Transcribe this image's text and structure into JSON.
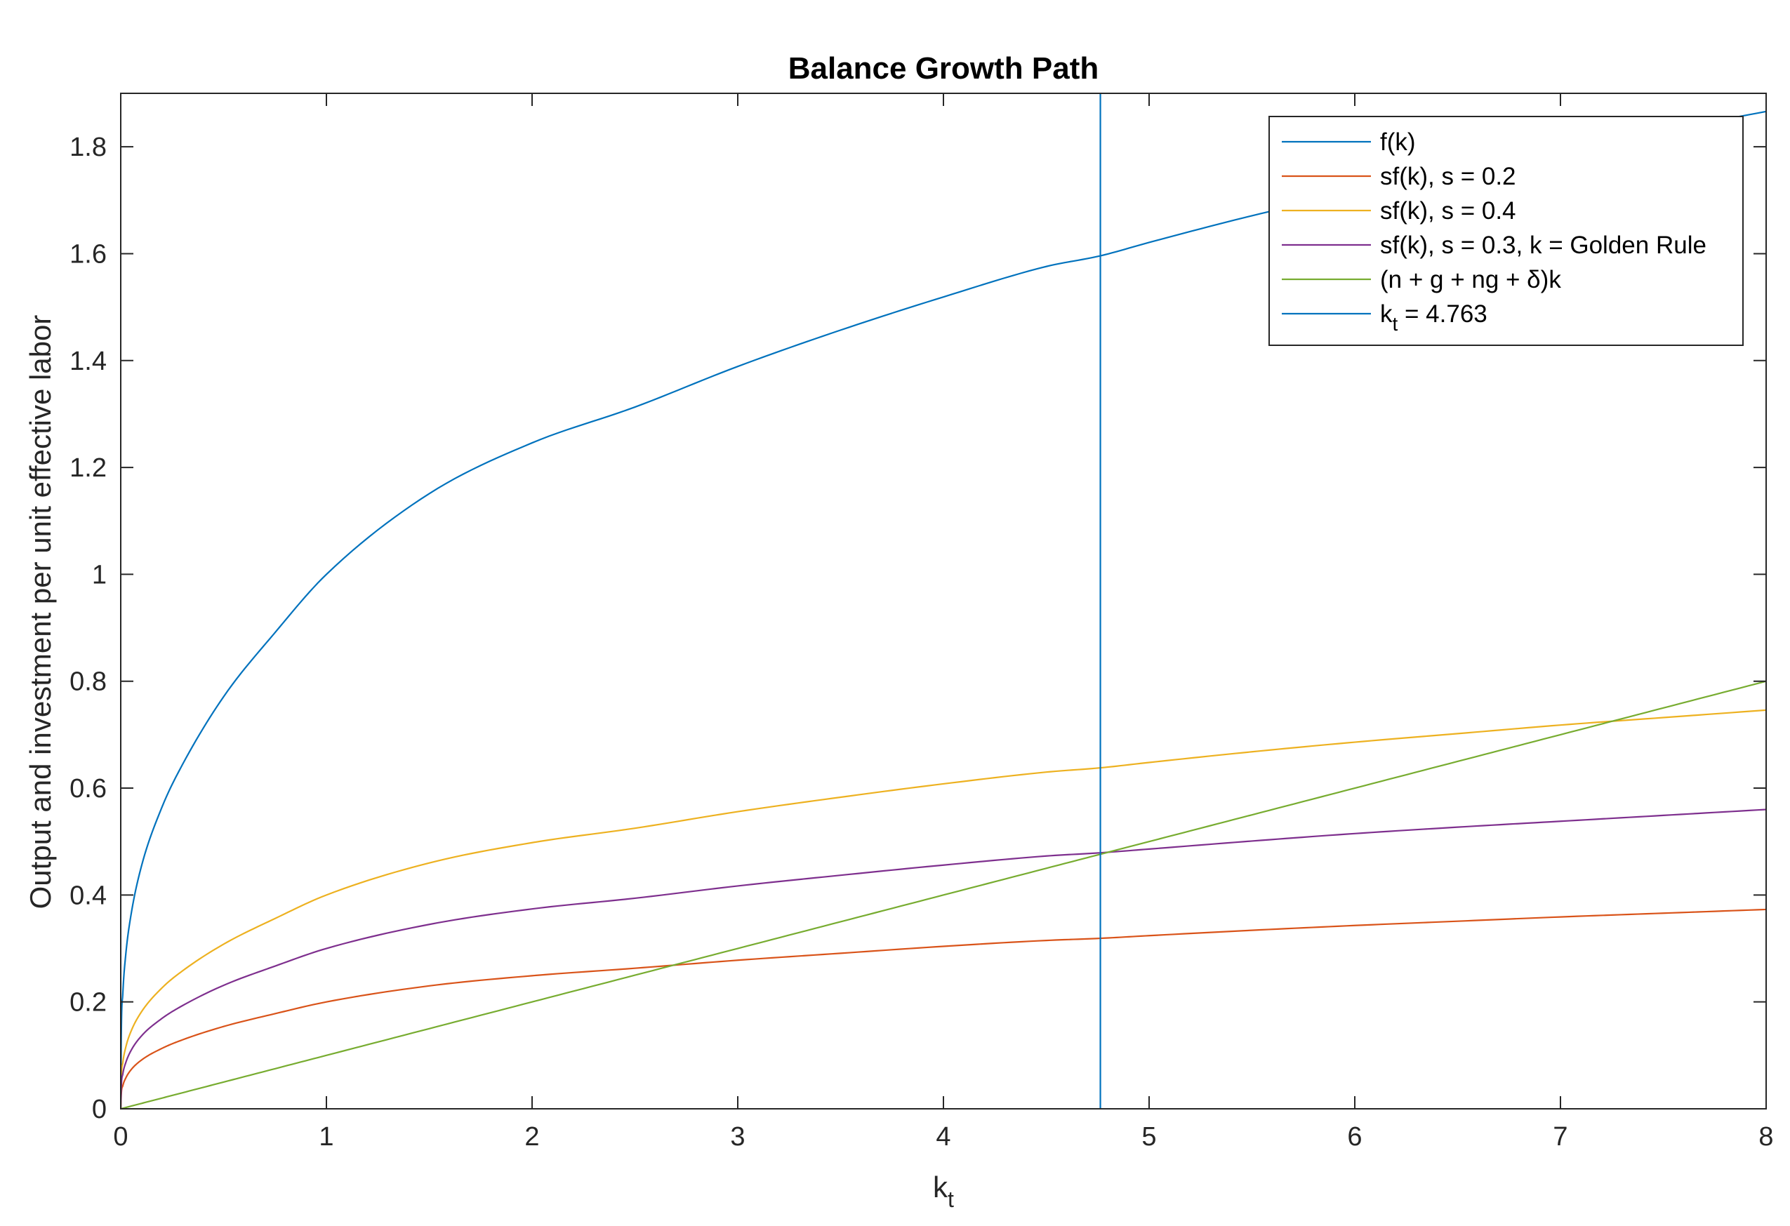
{
  "chart_data": {
    "type": "line",
    "title": "Balance Growth Path",
    "xlabel": "k",
    "xlabel_sub": "t",
    "ylabel": "Output and investment per unit effective labor",
    "xlim": [
      0,
      8
    ],
    "ylim": [
      0,
      1.9
    ],
    "x_ticks": [
      0,
      1,
      2,
      3,
      4,
      5,
      6,
      7,
      8
    ],
    "x_tick_labels": [
      "0",
      "1",
      "2",
      "3",
      "4",
      "5",
      "6",
      "7",
      "8"
    ],
    "y_ticks": [
      0,
      0.2,
      0.4,
      0.6,
      0.8,
      1.0,
      1.2,
      1.4,
      1.6,
      1.8
    ],
    "y_tick_labels": [
      "0",
      "0.2",
      "0.4",
      "0.6",
      "0.8",
      "1",
      "1.2",
      "1.4",
      "1.6",
      "1.8"
    ],
    "grid": false,
    "legend_position": "top-right",
    "x": [
      0,
      0.0025,
      0.01,
      0.025,
      0.05,
      0.1,
      0.2,
      0.3,
      0.5,
      0.75,
      1,
      1.5,
      2,
      2.5,
      3,
      3.5,
      4,
      4.5,
      4.763,
      5,
      5.5,
      6,
      6.5,
      7,
      7.5,
      8
    ],
    "series": [
      {
        "name": "f(k)",
        "color": "#0072BD",
        "values": [
          0,
          0.135,
          0.215,
          0.291,
          0.363,
          0.453,
          0.564,
          0.644,
          0.771,
          0.891,
          1.0,
          1.151,
          1.246,
          1.313,
          1.389,
          1.457,
          1.519,
          1.576,
          1.596,
          1.621,
          1.671,
          1.715,
          1.755,
          1.794,
          1.83,
          1.866
        ]
      },
      {
        "name": "sf(k), s = 0.2",
        "color": "#D95319",
        "values": [
          0,
          0.027,
          0.043,
          0.058,
          0.073,
          0.091,
          0.113,
          0.129,
          0.154,
          0.178,
          0.2,
          0.23,
          0.249,
          0.263,
          0.278,
          0.291,
          0.304,
          0.315,
          0.319,
          0.324,
          0.334,
          0.343,
          0.351,
          0.359,
          0.366,
          0.373
        ]
      },
      {
        "name": "sf(k), s = 0.4",
        "color": "#EDB120",
        "values": [
          0,
          0.054,
          0.086,
          0.116,
          0.145,
          0.181,
          0.226,
          0.258,
          0.308,
          0.356,
          0.4,
          0.46,
          0.498,
          0.525,
          0.556,
          0.583,
          0.608,
          0.63,
          0.638,
          0.648,
          0.668,
          0.686,
          0.702,
          0.718,
          0.732,
          0.746
        ]
      },
      {
        "name": "sf(k), s = 0.3, k = Golden Rule",
        "color": "#7E2F8E",
        "values": [
          0,
          0.04,
          0.065,
          0.087,
          0.109,
          0.136,
          0.169,
          0.193,
          0.231,
          0.267,
          0.3,
          0.345,
          0.374,
          0.394,
          0.417,
          0.437,
          0.456,
          0.473,
          0.479,
          0.486,
          0.501,
          0.515,
          0.527,
          0.538,
          0.549,
          0.56
        ]
      },
      {
        "name": "(n + g + ng + δ)k",
        "color": "#77AC30",
        "values": [
          0,
          0.00025,
          0.001,
          0.0025,
          0.005,
          0.01,
          0.02,
          0.03,
          0.05,
          0.075,
          0.1,
          0.15,
          0.2,
          0.25,
          0.3,
          0.35,
          0.4,
          0.45,
          0.4763,
          0.5,
          0.55,
          0.6,
          0.65,
          0.7,
          0.75,
          0.8
        ]
      }
    ],
    "vertical_line": {
      "name": "k",
      "name_sub": "t",
      "name_suffix": " = 4.763",
      "x": 4.763,
      "color": "#0072BD"
    },
    "legend": [
      {
        "text": "f(k)",
        "color": "#0072BD"
      },
      {
        "text": "sf(k), s = 0.2",
        "color": "#D95319"
      },
      {
        "text": "sf(k), s = 0.4",
        "color": "#EDB120"
      },
      {
        "text": "sf(k), s = 0.3, k = Golden Rule",
        "color": "#7E2F8E"
      },
      {
        "text": "(n + g + ng + δ)k",
        "color": "#77AC30"
      }
    ]
  }
}
